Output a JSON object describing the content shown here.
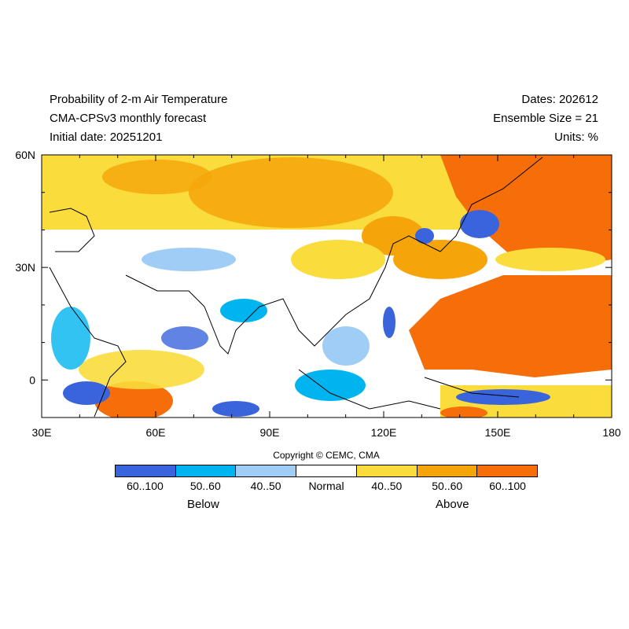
{
  "header": {
    "title": "Probability of 2-m Air Temperature",
    "model": "CMA-CPSv3 monthly forecast",
    "initial": "Initial date: 20251201",
    "dates": "Dates: 202612",
    "ensemble": "Ensemble Size = 21",
    "units": "Units: %"
  },
  "axes": {
    "lat_labels": [
      "60N",
      "30N",
      "0"
    ],
    "lon_labels": [
      "30E",
      "60E",
      "90E",
      "120E",
      "150E",
      "180"
    ]
  },
  "map": {
    "lon_range": [
      30,
      180
    ],
    "lat_range": [
      -10,
      60
    ]
  },
  "copyright": "Copyright © CEMC, CMA",
  "legend": {
    "bins": [
      {
        "label": "60..100",
        "color": "#3a64dc"
      },
      {
        "label": "50..60",
        "color": "#00b4f0"
      },
      {
        "label": "40..50",
        "color": "#a0cdf5"
      },
      {
        "label": "Normal",
        "color": "#ffffff"
      },
      {
        "label": "40..50",
        "color": "#fadc3c"
      },
      {
        "label": "50..60",
        "color": "#f5a50a"
      },
      {
        "label": "60..100",
        "color": "#f56e0a"
      }
    ],
    "below": "Below",
    "above": "Above"
  }
}
